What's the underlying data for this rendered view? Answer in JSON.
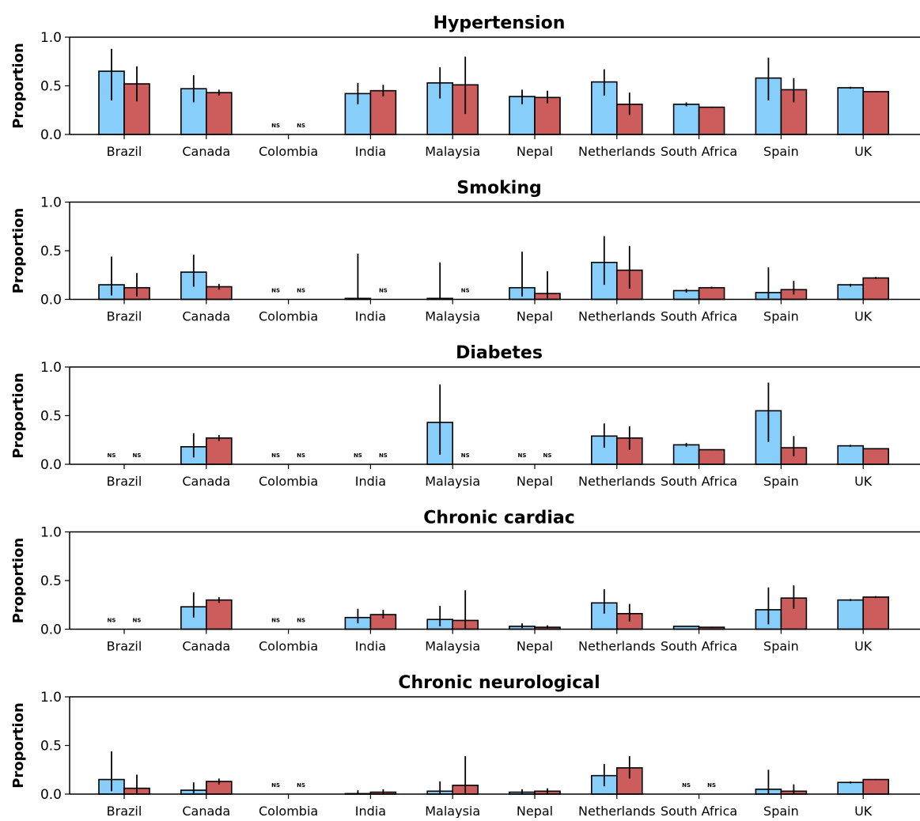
{
  "chart_data": [
    {
      "type": "bar",
      "title": "Hypertension",
      "ylabel": "Proportion",
      "ylim": [
        0,
        1.0
      ],
      "yticks": [
        "0.0",
        "0.5",
        "1.0"
      ],
      "categories": [
        "Brazil",
        "Canada",
        "Colombia",
        "India",
        "Malaysia",
        "Nepal",
        "Netherlands",
        "South Africa",
        "Spain",
        "UK"
      ],
      "series": [
        {
          "values": [
            0.65,
            0.47,
            null,
            0.42,
            0.53,
            0.39,
            0.54,
            0.31,
            0.58,
            0.48
          ],
          "err_low": [
            0.35,
            0.33,
            null,
            0.31,
            0.37,
            0.31,
            0.4,
            0.29,
            0.35,
            0.47
          ],
          "err_high": [
            0.88,
            0.61,
            null,
            0.53,
            0.69,
            0.46,
            0.67,
            0.33,
            0.79,
            0.49
          ]
        },
        {
          "values": [
            0.52,
            0.43,
            null,
            0.45,
            0.51,
            0.38,
            0.31,
            0.28,
            0.46,
            0.44
          ],
          "err_low": [
            0.34,
            0.4,
            null,
            0.39,
            0.21,
            0.32,
            0.2,
            0.275,
            0.33,
            0.435
          ],
          "err_high": [
            0.7,
            0.46,
            null,
            0.51,
            0.8,
            0.45,
            0.43,
            0.285,
            0.58,
            0.445
          ]
        }
      ],
      "ns_labels": [
        {
          "category": "Colombia",
          "series": 0,
          "text": "NS"
        },
        {
          "category": "Colombia",
          "series": 1,
          "text": "NS"
        }
      ]
    },
    {
      "type": "bar",
      "title": "Smoking",
      "ylabel": "Proportion",
      "ylim": [
        0,
        1.0
      ],
      "yticks": [
        "0.0",
        "0.5",
        "1.0"
      ],
      "categories": [
        "Brazil",
        "Canada",
        "Colombia",
        "India",
        "Malaysia",
        "Nepal",
        "Netherlands",
        "South Africa",
        "Spain",
        "UK"
      ],
      "series": [
        {
          "values": [
            0.15,
            0.28,
            null,
            0.01,
            0.01,
            0.12,
            0.38,
            0.09,
            0.07,
            0.15
          ],
          "err_low": [
            0.04,
            0.13,
            null,
            0.0,
            0.0,
            0.03,
            0.15,
            0.07,
            0.01,
            0.13
          ],
          "err_high": [
            0.44,
            0.46,
            null,
            0.47,
            0.38,
            0.49,
            0.65,
            0.11,
            0.33,
            0.16
          ]
        },
        {
          "values": [
            0.12,
            0.13,
            null,
            null,
            null,
            0.06,
            0.3,
            0.12,
            0.1,
            0.22
          ],
          "err_low": [
            0.03,
            0.1,
            null,
            null,
            null,
            0.01,
            0.11,
            0.11,
            0.05,
            0.21
          ],
          "err_high": [
            0.27,
            0.16,
            null,
            null,
            null,
            0.29,
            0.55,
            0.13,
            0.19,
            0.23
          ]
        }
      ],
      "ns_labels": [
        {
          "category": "Colombia",
          "series": 0,
          "text": "NS"
        },
        {
          "category": "Colombia",
          "series": 1,
          "text": "NS"
        },
        {
          "category": "India",
          "series": 1,
          "text": "NS"
        },
        {
          "category": "Malaysia",
          "series": 1,
          "text": "NS"
        }
      ]
    },
    {
      "type": "bar",
      "title": "Diabetes",
      "ylabel": "Proportion",
      "ylim": [
        0,
        1.0
      ],
      "yticks": [
        "0.0",
        "0.5",
        "1.0"
      ],
      "categories": [
        "Brazil",
        "Canada",
        "Colombia",
        "India",
        "Malaysia",
        "Nepal",
        "Netherlands",
        "South Africa",
        "Spain",
        "UK"
      ],
      "series": [
        {
          "values": [
            null,
            0.18,
            null,
            null,
            0.43,
            null,
            0.29,
            0.2,
            0.55,
            0.19
          ],
          "err_low": [
            null,
            0.07,
            null,
            null,
            0.1,
            null,
            0.17,
            0.18,
            0.23,
            0.18
          ],
          "err_high": [
            null,
            0.32,
            null,
            null,
            0.82,
            null,
            0.42,
            0.22,
            0.84,
            0.2
          ]
        },
        {
          "values": [
            null,
            0.27,
            null,
            null,
            null,
            null,
            0.27,
            0.15,
            0.17,
            0.16
          ],
          "err_low": [
            null,
            0.24,
            null,
            null,
            null,
            null,
            0.15,
            0.145,
            0.08,
            0.155
          ],
          "err_high": [
            null,
            0.3,
            null,
            null,
            null,
            null,
            0.39,
            0.155,
            0.29,
            0.165
          ]
        }
      ],
      "ns_labels": [
        {
          "category": "Brazil",
          "series": 0,
          "text": "NS"
        },
        {
          "category": "Brazil",
          "series": 1,
          "text": "NS"
        },
        {
          "category": "Colombia",
          "series": 0,
          "text": "NS"
        },
        {
          "category": "Colombia",
          "series": 1,
          "text": "NS"
        },
        {
          "category": "India",
          "series": 0,
          "text": "NS"
        },
        {
          "category": "India",
          "series": 1,
          "text": "NS"
        },
        {
          "category": "Malaysia",
          "series": 1,
          "text": "NS"
        },
        {
          "category": "Nepal",
          "series": 0,
          "text": "NS"
        },
        {
          "category": "Nepal",
          "series": 1,
          "text": "NS"
        }
      ]
    },
    {
      "type": "bar",
      "title": "Chronic cardiac",
      "ylabel": "Proportion",
      "ylim": [
        0,
        1.0
      ],
      "yticks": [
        "0.0",
        "0.5",
        "1.0"
      ],
      "categories": [
        "Brazil",
        "Canada",
        "Colombia",
        "India",
        "Malaysia",
        "Nepal",
        "Netherlands",
        "South Africa",
        "Spain",
        "UK"
      ],
      "series": [
        {
          "values": [
            null,
            0.23,
            null,
            0.12,
            0.1,
            0.03,
            0.27,
            0.03,
            0.2,
            0.3
          ],
          "err_low": [
            null,
            0.12,
            null,
            0.06,
            0.03,
            0.01,
            0.16,
            0.025,
            0.05,
            0.29
          ],
          "err_high": [
            null,
            0.38,
            null,
            0.21,
            0.24,
            0.06,
            0.41,
            0.035,
            0.43,
            0.31
          ]
        },
        {
          "values": [
            null,
            0.3,
            null,
            0.15,
            0.09,
            0.02,
            0.16,
            0.02,
            0.32,
            0.33
          ],
          "err_low": [
            null,
            0.27,
            null,
            0.11,
            0.01,
            0.01,
            0.08,
            0.015,
            0.21,
            0.32
          ],
          "err_high": [
            null,
            0.33,
            null,
            0.2,
            0.4,
            0.04,
            0.26,
            0.025,
            0.45,
            0.34
          ]
        }
      ],
      "ns_labels": [
        {
          "category": "Brazil",
          "series": 0,
          "text": "NS"
        },
        {
          "category": "Brazil",
          "series": 1,
          "text": "NS"
        },
        {
          "category": "Colombia",
          "series": 0,
          "text": "NS"
        },
        {
          "category": "Colombia",
          "series": 1,
          "text": "NS"
        }
      ]
    },
    {
      "type": "bar",
      "title": "Chronic neurological",
      "ylabel": "Proportion",
      "ylim": [
        0,
        1.0
      ],
      "yticks": [
        "0.0",
        "0.5",
        "1.0"
      ],
      "categories": [
        "Brazil",
        "Canada",
        "Colombia",
        "India",
        "Malaysia",
        "Nepal",
        "Netherlands",
        "South Africa",
        "Spain",
        "UK"
      ],
      "series": [
        {
          "values": [
            0.15,
            0.04,
            null,
            0.005,
            0.03,
            0.02,
            0.19,
            null,
            0.05,
            0.12
          ],
          "err_low": [
            0.03,
            0.01,
            null,
            0.0,
            0.0,
            0.0,
            0.08,
            null,
            0.0,
            0.11
          ],
          "err_high": [
            0.44,
            0.12,
            null,
            0.04,
            0.13,
            0.05,
            0.31,
            null,
            0.25,
            0.13
          ]
        },
        {
          "values": [
            0.06,
            0.13,
            null,
            0.02,
            0.09,
            0.03,
            0.27,
            null,
            0.03,
            0.15
          ],
          "err_low": [
            0.01,
            0.1,
            null,
            0.0,
            0.01,
            0.0,
            0.16,
            null,
            0.0,
            0.145
          ],
          "err_high": [
            0.2,
            0.16,
            null,
            0.05,
            0.39,
            0.06,
            0.39,
            null,
            0.1,
            0.155
          ]
        }
      ],
      "ns_labels": [
        {
          "category": "Colombia",
          "series": 0,
          "text": "NS"
        },
        {
          "category": "Colombia",
          "series": 1,
          "text": "NS"
        },
        {
          "category": "South Africa",
          "series": 0,
          "text": "NS"
        },
        {
          "category": "South Africa",
          "series": 1,
          "text": "NS"
        }
      ]
    }
  ],
  "colors": {
    "series_0": "#87cefa",
    "series_1": "#cd5c5c",
    "edge": "#000000"
  }
}
